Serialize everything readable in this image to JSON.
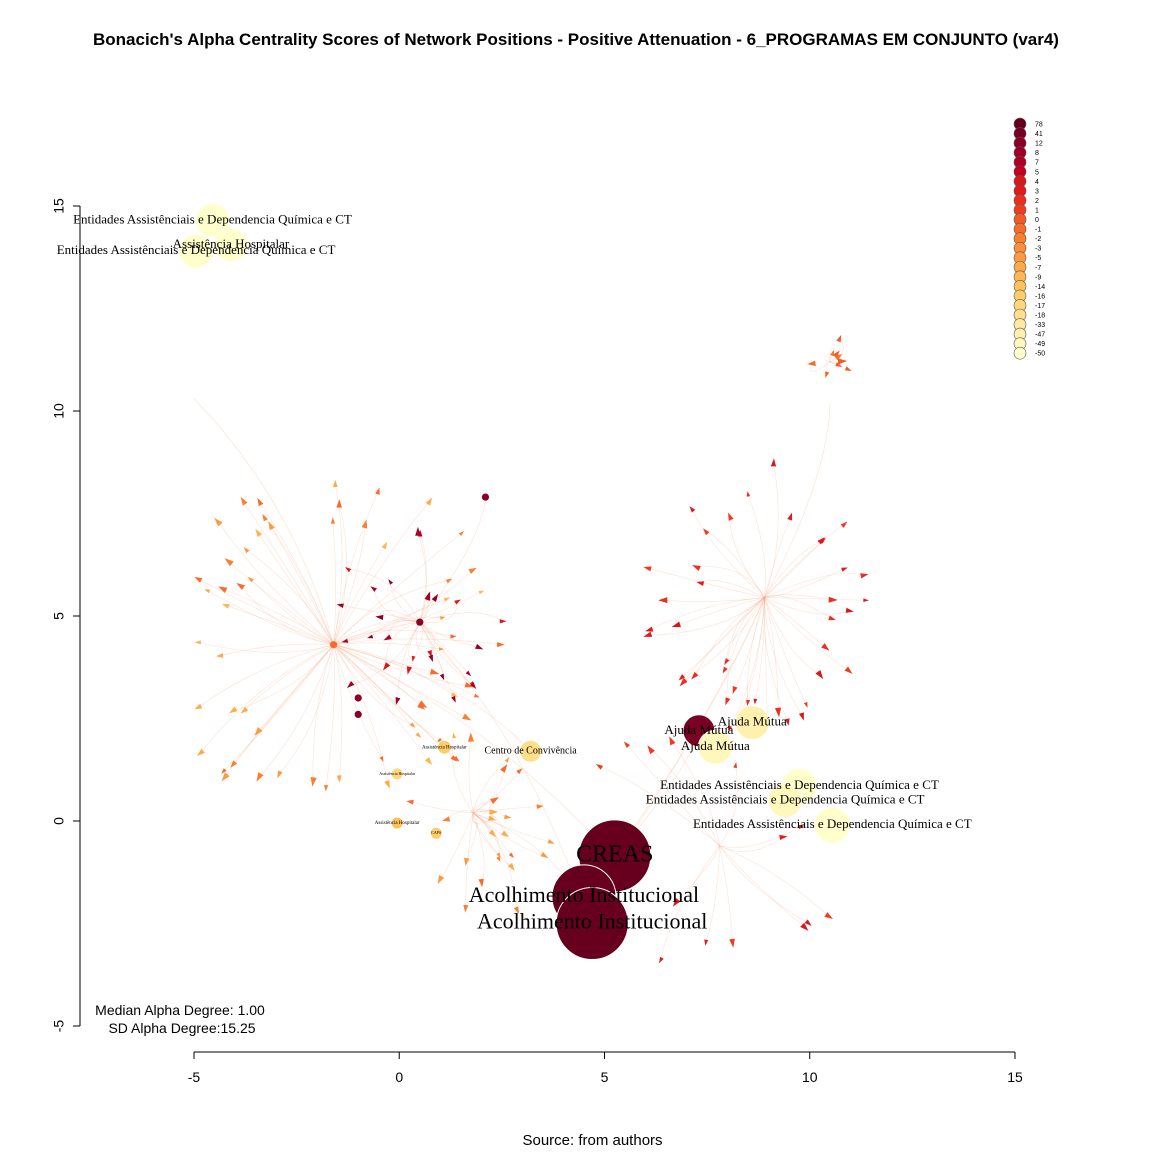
{
  "chart_data": {
    "type": "scatter",
    "title": "Bonacich's Alpha Centrality Scores of Network Positions - Positive Attenuation - 6_PROGRAMAS EM CONJUNTO (var4)",
    "source": "Source: from authors",
    "xlim": [
      -5,
      15
    ],
    "ylim": [
      -5,
      15
    ],
    "x_ticks": [
      -5,
      0,
      5,
      10,
      15
    ],
    "y_ticks": [
      -5,
      0,
      5,
      10,
      15
    ],
    "stats": [
      "Median Alpha Degree: 1.00",
      "SD Alpha Degree:15.25"
    ],
    "legend_position": "top-right",
    "legend": [
      "78",
      "41",
      "12",
      "8",
      "7",
      "5",
      "4",
      "3",
      "2",
      "1",
      "0",
      "-1",
      "-2",
      "-3",
      "-5",
      "-7",
      "-9",
      "-14",
      "-16",
      "-17",
      "-18",
      "-33",
      "-47",
      "-49",
      "-50"
    ],
    "legend_colors": [
      "#67001f",
      "#7a0024",
      "#8c0026",
      "#a00026",
      "#b10026",
      "#c6001f",
      "#d7191c",
      "#e31a1c",
      "#ea2f20",
      "#f03b20",
      "#f45a25",
      "#f76c2b",
      "#fa7f2f",
      "#fc8d3c",
      "#fd9a40",
      "#fdaa48",
      "#fdb651",
      "#fec25d",
      "#fecd6a",
      "#fed77c",
      "#fee08b",
      "#fee9a0",
      "#fff0b0",
      "#fff7bc",
      "#ffffcc"
    ],
    "labeled_nodes": [
      {
        "label": "CREAS",
        "x": 5.25,
        "y": -0.85,
        "size": 36,
        "font": 24,
        "color": "#67001f"
      },
      {
        "label": "Acolhimento Institucional",
        "x": 4.5,
        "y": -1.85,
        "size": 32,
        "font": 22,
        "color": "#67001f"
      },
      {
        "label": "Acolhimento Institucional",
        "x": 4.7,
        "y": -2.5,
        "size": 36,
        "font": 22,
        "color": "#67001f"
      },
      {
        "label": "Ajuda Mútua",
        "x": 7.3,
        "y": 2.2,
        "size": 16,
        "font": 13,
        "color": "#7a0024"
      },
      {
        "label": "Ajuda Mútua",
        "x": 8.6,
        "y": 2.4,
        "size": 17,
        "font": 13,
        "color": "#fff0b0"
      },
      {
        "label": "Ajuda Mútua",
        "x": 7.7,
        "y": 1.8,
        "size": 17,
        "font": 13,
        "color": "#fff7bc"
      },
      {
        "label": "Entidades Assistênciais e Dependencia Química e CT",
        "x": 9.75,
        "y": 0.85,
        "size": 18,
        "font": 13,
        "color": "#ffffcc"
      },
      {
        "label": "Entidades Assistênciais e Dependencia Química e CT",
        "x": 9.4,
        "y": 0.5,
        "size": 17,
        "font": 13,
        "color": "#fff7bc"
      },
      {
        "label": "Entidades Assistênciais e Dependencia Química e CT",
        "x": 10.55,
        "y": -0.1,
        "size": 18,
        "font": 13,
        "color": "#ffffcc"
      },
      {
        "label": "Entidades Assistênciais e Dependencia Química e CT",
        "x": -4.55,
        "y": 14.65,
        "size": 17,
        "font": 13,
        "color": "#ffffcc"
      },
      {
        "label": "Assistência Hospitalar",
        "x": -4.1,
        "y": 14.05,
        "size": 17,
        "font": 13,
        "color": "#ffffcc"
      },
      {
        "label": "Entidades Assistênciais e Dependencia Química e CT",
        "x": -4.95,
        "y": 13.9,
        "size": 17,
        "font": 13,
        "color": "#ffffcc"
      },
      {
        "label": "Centro de Convivência",
        "x": 3.2,
        "y": 1.7,
        "size": 11,
        "font": 10,
        "color": "#fee08b"
      },
      {
        "label": "Assistência Hospitalar",
        "x": 1.1,
        "y": 1.8,
        "size": 7,
        "font": 5,
        "color": "#fecd6a"
      },
      {
        "label": "Assistência Hospitalar",
        "x": -0.05,
        "y": 1.15,
        "size": 6,
        "font": 4,
        "color": "#fed77c"
      },
      {
        "label": "Assistência Hospitalar",
        "x": -0.05,
        "y": -0.05,
        "size": 6,
        "font": 5,
        "color": "#fec25d"
      },
      {
        "label": "CAPS",
        "x": 0.9,
        "y": -0.3,
        "size": 6,
        "font": 4,
        "color": "#fecd6a"
      }
    ]
  }
}
